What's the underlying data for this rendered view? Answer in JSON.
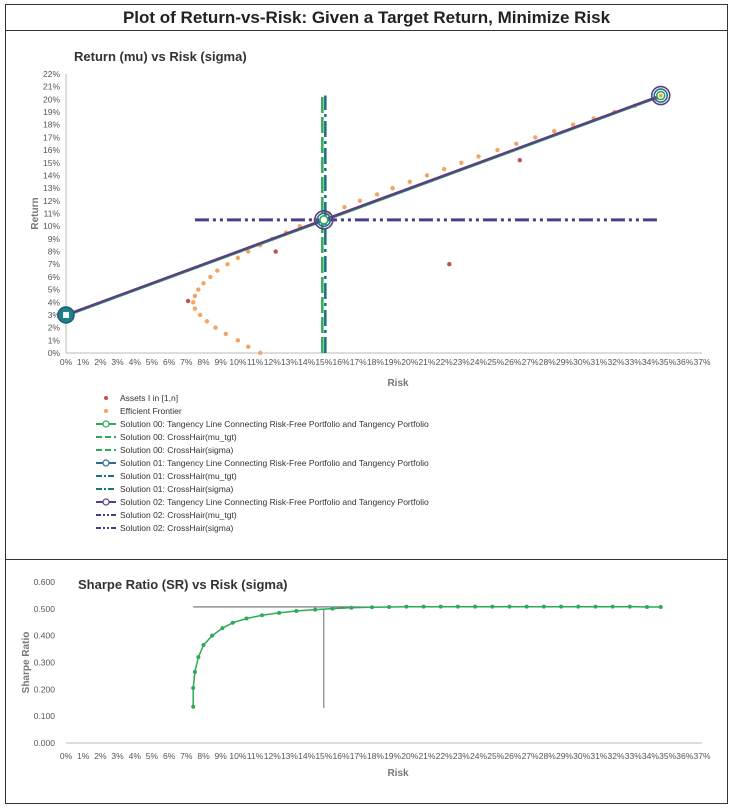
{
  "page_title": "Plot of Return-vs-Risk: Given a Target Return, Minimize Risk",
  "chart_data": [
    {
      "type": "scatter",
      "title": "Return (mu) vs Risk (sigma)",
      "xlabel": "Risk",
      "ylabel": "Return",
      "xlim": [
        0,
        0.37
      ],
      "ylim": [
        0,
        0.22
      ],
      "x_ticks": [
        "0%",
        "1%",
        "2%",
        "3%",
        "4%",
        "5%",
        "6%",
        "7%",
        "8%",
        "9%",
        "10%",
        "11%",
        "12%",
        "13%",
        "14%",
        "15%",
        "16%",
        "17%",
        "18%",
        "19%",
        "20%",
        "21%",
        "22%",
        "23%",
        "24%",
        "25%",
        "26%",
        "27%",
        "28%",
        "29%",
        "30%",
        "31%",
        "32%",
        "33%",
        "34%",
        "35%",
        "36%",
        "37%"
      ],
      "y_ticks": [
        "0%",
        "1%",
        "2%",
        "3%",
        "4%",
        "5%",
        "6%",
        "7%",
        "8%",
        "9%",
        "10%",
        "11%",
        "12%",
        "13%",
        "14%",
        "15%",
        "16%",
        "17%",
        "18%",
        "19%",
        "20%",
        "21%",
        "22%"
      ],
      "grid": false,
      "legend_position": "bottom",
      "colors": {
        "assets": "#c0504d",
        "frontier": "#f4a460",
        "sol00": "#2eaa58",
        "sol01": "#2a6f8f",
        "sol02": "#5b3f86",
        "crosshair_v": "#1a6f80",
        "crosshair_h": "#4b3c88"
      },
      "series": [
        {
          "name": "Assets I in [1,n]",
          "points": [
            [
              0.071,
              0.041
            ],
            [
              0.122,
              0.08
            ],
            [
              0.223,
              0.07
            ],
            [
              0.264,
              0.152
            ],
            [
              0.346,
              0.204
            ]
          ]
        },
        {
          "name": "Efficient Frontier",
          "points": [
            [
              0.113,
              0.0
            ],
            [
              0.106,
              0.005
            ],
            [
              0.1,
              0.01
            ],
            [
              0.093,
              0.015
            ],
            [
              0.087,
              0.02
            ],
            [
              0.082,
              0.025
            ],
            [
              0.078,
              0.03
            ],
            [
              0.075,
              0.035
            ],
            [
              0.074,
              0.04
            ],
            [
              0.075,
              0.045
            ],
            [
              0.077,
              0.05
            ],
            [
              0.08,
              0.055
            ],
            [
              0.084,
              0.06
            ],
            [
              0.088,
              0.065
            ],
            [
              0.094,
              0.07
            ],
            [
              0.1,
              0.075
            ],
            [
              0.106,
              0.08
            ],
            [
              0.113,
              0.085
            ],
            [
              0.12,
              0.09
            ],
            [
              0.128,
              0.095
            ],
            [
              0.136,
              0.1
            ],
            [
              0.145,
              0.105
            ],
            [
              0.153,
              0.11
            ],
            [
              0.162,
              0.115
            ],
            [
              0.171,
              0.12
            ],
            [
              0.181,
              0.125
            ],
            [
              0.19,
              0.13
            ],
            [
              0.2,
              0.135
            ],
            [
              0.21,
              0.14
            ],
            [
              0.22,
              0.145
            ],
            [
              0.23,
              0.15
            ],
            [
              0.24,
              0.155
            ],
            [
              0.251,
              0.16
            ],
            [
              0.262,
              0.165
            ],
            [
              0.273,
              0.17
            ],
            [
              0.284,
              0.175
            ],
            [
              0.295,
              0.18
            ],
            [
              0.307,
              0.185
            ],
            [
              0.319,
              0.19
            ],
            [
              0.331,
              0.195
            ],
            [
              0.343,
              0.2
            ]
          ]
        },
        {
          "name": "Solution 00: Tangency Line Connecting Risk-Free Portfolio and Tangency Portfolio",
          "points": [
            [
              0.0,
              0.03
            ],
            [
              0.346,
              0.203
            ]
          ]
        },
        {
          "name": "Solution 00: CrossHair(mu_tgt)",
          "points": [
            [
              0.15,
              0.105
            ],
            [
              0.15,
              0.105
            ]
          ]
        },
        {
          "name": "Solution 00: CrossHair(sigma)",
          "points": [
            [
              0.15,
              0.105
            ],
            [
              0.15,
              0.105
            ]
          ]
        },
        {
          "name": "Solution 01: Tangency Line Connecting Risk-Free Portfolio and Tangency Portfolio",
          "points": [
            [
              0.0,
              0.03
            ],
            [
              0.346,
              0.203
            ]
          ]
        },
        {
          "name": "Solution 01: CrossHair(mu_tgt)",
          "points": [
            [
              0.15,
              0.105
            ],
            [
              0.15,
              0.105
            ]
          ]
        },
        {
          "name": "Solution 01: CrossHair(sigma)",
          "points": [
            [
              0.15,
              0.0
            ],
            [
              0.15,
              0.203
            ]
          ]
        },
        {
          "name": "Solution 02: Tangency Line Connecting Risk-Free Portfolio and Tangency Portfolio",
          "points": [
            [
              0.0,
              0.03
            ],
            [
              0.346,
              0.203
            ]
          ]
        },
        {
          "name": "Solution 02: CrossHair(mu_tgt)",
          "points": [
            [
              0.075,
              0.105
            ],
            [
              0.346,
              0.105
            ]
          ]
        },
        {
          "name": "Solution 02: CrossHair(sigma)",
          "points": [
            [
              0.15,
              0.105
            ],
            [
              0.15,
              0.105
            ]
          ]
        }
      ]
    },
    {
      "type": "line",
      "title": "Sharpe Ratio (SR) vs Risk (sigma)",
      "xlabel": "Risk",
      "ylabel": "Sharpe Ratio",
      "xlim": [
        0,
        0.37
      ],
      "ylim": [
        0,
        0.6
      ],
      "x_ticks": [
        "0%",
        "1%",
        "2%",
        "3%",
        "4%",
        "5%",
        "6%",
        "7%",
        "8%",
        "9%",
        "10%",
        "11%",
        "12%",
        "13%",
        "14%",
        "15%",
        "16%",
        "17%",
        "18%",
        "19%",
        "20%",
        "21%",
        "22%",
        "23%",
        "24%",
        "25%",
        "26%",
        "27%",
        "28%",
        "29%",
        "30%",
        "31%",
        "32%",
        "33%",
        "34%",
        "35%",
        "36%",
        "37%"
      ],
      "y_ticks": [
        "0.000",
        "0.100",
        "0.200",
        "0.300",
        "0.400",
        "0.500",
        "0.600"
      ],
      "color": "#2eaa58",
      "crosshair": {
        "x": 0.15,
        "y": 0.5
      },
      "points": [
        [
          0.074,
          0.135
        ],
        [
          0.074,
          0.205
        ],
        [
          0.075,
          0.265
        ],
        [
          0.077,
          0.32
        ],
        [
          0.08,
          0.365
        ],
        [
          0.085,
          0.4
        ],
        [
          0.091,
          0.428
        ],
        [
          0.097,
          0.448
        ],
        [
          0.105,
          0.464
        ],
        [
          0.114,
          0.476
        ],
        [
          0.124,
          0.485
        ],
        [
          0.134,
          0.492
        ],
        [
          0.145,
          0.497
        ],
        [
          0.155,
          0.501
        ],
        [
          0.166,
          0.504
        ],
        [
          0.178,
          0.506
        ],
        [
          0.188,
          0.507
        ],
        [
          0.198,
          0.508
        ],
        [
          0.208,
          0.508
        ],
        [
          0.218,
          0.508
        ],
        [
          0.228,
          0.508
        ],
        [
          0.238,
          0.508
        ],
        [
          0.248,
          0.508
        ],
        [
          0.258,
          0.508
        ],
        [
          0.268,
          0.508
        ],
        [
          0.278,
          0.508
        ],
        [
          0.288,
          0.508
        ],
        [
          0.298,
          0.508
        ],
        [
          0.308,
          0.508
        ],
        [
          0.318,
          0.508
        ],
        [
          0.328,
          0.508
        ],
        [
          0.338,
          0.507
        ],
        [
          0.346,
          0.507
        ]
      ]
    }
  ]
}
